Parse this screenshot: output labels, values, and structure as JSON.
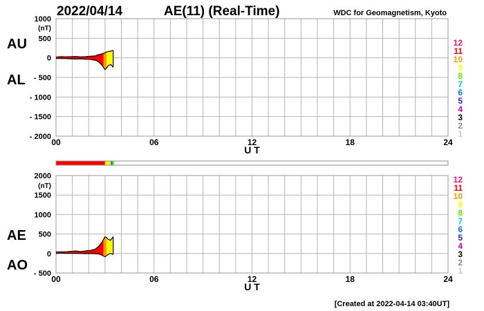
{
  "header": {
    "date": "2022/04/14",
    "title": "AE(11) (Real-Time)",
    "source": "WDC for Geomagnetism, Kyoto"
  },
  "footer": {
    "created": "[Created at 2022-04-14 03:40UT]"
  },
  "colors": {
    "grid": "#b4b4b4",
    "station_count": {
      "1": "#cccccc",
      "2": "#888888",
      "3": "#000000",
      "4": "#cc00cc",
      "5": "#2222cc",
      "6": "#1177ff",
      "7": "#00ccdd",
      "8": "#66ee00",
      "9": "#ffff00",
      "10": "#ff9900",
      "11": "#ff0000",
      "12": "#ff1177"
    }
  },
  "legend": {
    "station_counts": [
      "12",
      "11",
      "10",
      "9",
      "8",
      "7",
      "6",
      "5",
      "4",
      "3",
      "2",
      "1"
    ]
  },
  "chart_data": [
    {
      "type": "area",
      "panel": "AU/AL",
      "side_labels": [
        "AU",
        "AL"
      ],
      "ylabel": "(nT)",
      "xlabel": "U T",
      "xlim": [
        0,
        24
      ],
      "ylim": [
        -2000,
        1000
      ],
      "x_ticks": [
        "00",
        "06",
        "12",
        "18",
        "24"
      ],
      "y_ticks": [
        "1000",
        "500",
        "0",
        "- 500",
        "- 1000",
        "- 1500",
        "- 2000"
      ],
      "y_tick_values": [
        1000,
        500,
        0,
        -500,
        -1000,
        -1500,
        -2000
      ],
      "series": [
        {
          "name": "AU",
          "x": [
            0,
            0.3,
            0.6,
            0.9,
            1.2,
            1.5,
            1.8,
            2.1,
            2.4,
            2.6,
            2.8,
            3.0,
            3.1,
            3.2,
            3.35,
            3.5
          ],
          "y": [
            20,
            30,
            25,
            30,
            35,
            25,
            30,
            40,
            50,
            80,
            100,
            130,
            150,
            160,
            170,
            190
          ]
        },
        {
          "name": "AL",
          "x": [
            0,
            0.3,
            0.6,
            0.9,
            1.2,
            1.5,
            1.8,
            2.1,
            2.4,
            2.6,
            2.8,
            3.0,
            3.1,
            3.2,
            3.35,
            3.5
          ],
          "y": [
            -20,
            -15,
            -20,
            -25,
            -30,
            -25,
            -35,
            -40,
            -60,
            -100,
            -180,
            -300,
            -260,
            -200,
            -170,
            -240
          ]
        }
      ]
    },
    {
      "type": "area",
      "panel": "AE/AO",
      "side_labels": [
        "AE",
        "AO"
      ],
      "ylabel": "(nT)",
      "xlabel": "U T",
      "xlim": [
        0,
        24
      ],
      "ylim": [
        -500,
        2000
      ],
      "x_ticks": [
        "00",
        "06",
        "12",
        "18",
        "24"
      ],
      "y_ticks": [
        "2000",
        "1500",
        "1000",
        "500",
        "0",
        "- 500"
      ],
      "y_tick_values": [
        2000,
        1500,
        1000,
        500,
        0,
        -500
      ],
      "series": [
        {
          "name": "AE",
          "x": [
            0,
            0.3,
            0.6,
            0.9,
            1.2,
            1.5,
            1.8,
            2.1,
            2.4,
            2.6,
            2.8,
            3.0,
            3.1,
            3.2,
            3.35,
            3.5
          ],
          "y": [
            40,
            45,
            45,
            55,
            65,
            50,
            65,
            80,
            110,
            180,
            280,
            430,
            410,
            360,
            340,
            430
          ]
        },
        {
          "name": "AO",
          "x": [
            0,
            0.3,
            0.6,
            0.9,
            1.2,
            1.5,
            1.8,
            2.1,
            2.4,
            2.6,
            2.8,
            3.0,
            3.1,
            3.2,
            3.35,
            3.5
          ],
          "y": [
            0,
            8,
            3,
            3,
            3,
            0,
            -3,
            0,
            -5,
            -10,
            -40,
            -85,
            -55,
            -20,
            0,
            -25
          ]
        }
      ]
    }
  ],
  "station_bar": {
    "xlim": [
      0,
      24
    ],
    "segments": [
      {
        "x0": 0.0,
        "x1": 3.0,
        "count": "11"
      },
      {
        "x0": 3.0,
        "x1": 3.35,
        "count": "9"
      },
      {
        "x0": 3.35,
        "x1": 3.45,
        "count": "6"
      },
      {
        "x0": 3.45,
        "x1": 3.55,
        "count": "8"
      }
    ]
  },
  "fill_bands": [
    {
      "x0": 0.0,
      "x1": 2.9,
      "count": "11"
    },
    {
      "x0": 2.9,
      "x1": 3.1,
      "count": "10"
    },
    {
      "x0": 3.1,
      "x1": 3.5,
      "count": "9"
    }
  ]
}
